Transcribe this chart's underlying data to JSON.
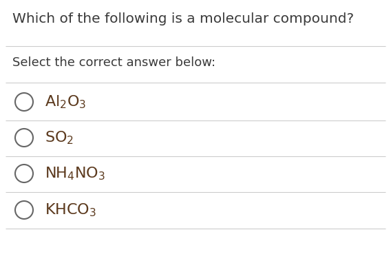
{
  "title": "Which of the following is a molecular compound?",
  "subtitle": "Select the correct answer below:",
  "options": [
    "Al$_2$O$_3$",
    "SO$_2$",
    "NH$_4$NO$_3$",
    "KHCO$_3$"
  ],
  "background_color": "#ffffff",
  "title_color": "#3a3a3a",
  "subtitle_color": "#3a3a3a",
  "option_color": "#5c3a1e",
  "line_color": "#cccccc",
  "circle_color": "#666666",
  "title_fontsize": 14.5,
  "subtitle_fontsize": 13,
  "option_fontsize": 16
}
